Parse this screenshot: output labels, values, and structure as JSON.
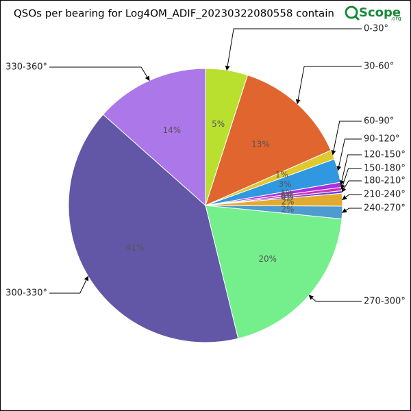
{
  "chart_data": {
    "type": "pie",
    "title": "QSOs per bearing for Log4OM_ADIF_20230322080558 contain",
    "categories": [
      "0-30°",
      "30-60°",
      "60-90°",
      "90-120°",
      "120-150°",
      "150-180°",
      "180-210°",
      "210-240°",
      "240-270°",
      "270-300°",
      "300-330°",
      "330-360°"
    ],
    "values": [
      5,
      13.5,
      1.1,
      2.8,
      0.6,
      0.4,
      0.3,
      1.5,
      1.5,
      19.7,
      40.6,
      13.5
    ],
    "value_labels": [
      "5%",
      "13%",
      "1%",
      "3%",
      "1%",
      "0%",
      "0%",
      "2%",
      "2%",
      "20%",
      "41%",
      "14%"
    ],
    "colors": [
      "#b9e02f",
      "#e0652f",
      "#e0c82f",
      "#2f98e0",
      "#a92fe0",
      "#d22fb8",
      "#6a3ee0",
      "#e0ab2f",
      "#4e9bd0",
      "#74ef8b",
      "#6157a6",
      "#ac77e8"
    ]
  },
  "watermark": {
    "text": "Scope",
    "suffix": ".org"
  }
}
